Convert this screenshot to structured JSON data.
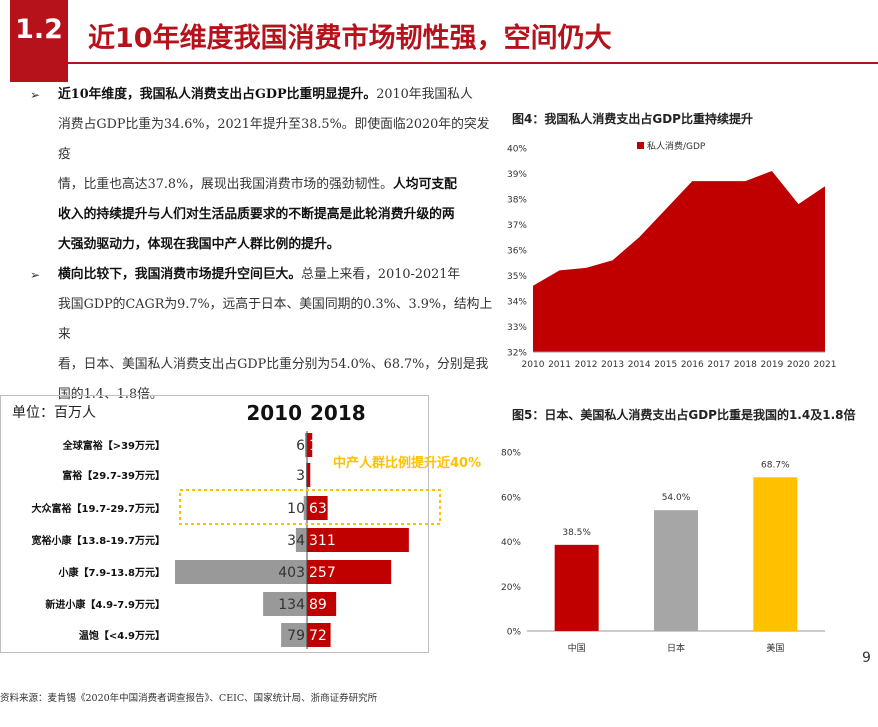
{
  "header": {
    "section_number": "1.2",
    "title": "近10年维度我国消费市场韧性强，空间仍大"
  },
  "bullets": [
    {
      "lines": [
        [
          {
            "t": "近10年维度，我国私人消费支出占GDP比重明显提升。",
            "b": true
          },
          {
            "t": "2010年我国私人",
            "b": false
          }
        ],
        [
          {
            "t": "消费占GDP比重为34.6%，2021年提升至38.5%。即使面临2020年的突发疫",
            "b": false
          }
        ],
        [
          {
            "t": "情，比重也高达37.8%，展现出我国消费市场的强劲韧性。",
            "b": false
          },
          {
            "t": "人均可支配",
            "b": true
          }
        ],
        [
          {
            "t": "收入的持续提升与人们对生活品质要求的不断提高是此轮消费升级的两",
            "b": true
          }
        ],
        [
          {
            "t": "大强劲驱动力，体现在我国中产人群比例的提升。",
            "b": true
          }
        ]
      ]
    },
    {
      "lines": [
        [
          {
            "t": "横向比较下，我国消费市场提升空间巨大。",
            "b": true
          },
          {
            "t": "总量上来看，2010-2021年",
            "b": false
          }
        ],
        [
          {
            "t": "我国GDP的CAGR为9.7%，远高于日本、美国同期的0.3%、3.9%，结构上来",
            "b": false
          }
        ],
        [
          {
            "t": "看，日本、美国私人消费支出占GDP比重分别为54.0%、68.7%，分别是我",
            "b": false
          }
        ],
        [
          {
            "t": "国的1.4、1.8倍。",
            "b": false
          }
        ]
      ]
    }
  ],
  "fig4": {
    "title": "图4：我国私人消费支出占GDP比重持续提升"
  },
  "fig5": {
    "title": "图5：日本、美国私人消费支出占GDP比重是我国的1.4及1.8倍"
  },
  "pyramid": {
    "unit_label": "单位：百万人",
    "year_left": "2010",
    "year_right": "2018",
    "annotation": "中产人群比例提升近40%"
  },
  "source": "资料来源：麦肯锡《2020年中国消费者调查报告》、CEIC、国家统计局、浙商证券研究所",
  "page_number": "9",
  "colors": {
    "red": "#c00000",
    "gray": "#999999",
    "gold": "#ffc000",
    "light_gray": "#a6a6a6",
    "dark_gray": "#808080"
  },
  "chart_data": [
    {
      "type": "area",
      "x": [
        "2010",
        "2011",
        "2012",
        "2013",
        "2014",
        "2015",
        "2016",
        "2017",
        "2018",
        "2019",
        "2020",
        "2021"
      ],
      "series": [
        {
          "name": "私人消费/GDP",
          "values": [
            34.6,
            35.2,
            35.3,
            35.6,
            36.5,
            37.6,
            38.7,
            38.7,
            38.7,
            39.1,
            37.8,
            38.5
          ]
        }
      ],
      "yticks": [
        "32%",
        "33%",
        "34%",
        "35%",
        "36%",
        "37%",
        "38%",
        "39%",
        "40%"
      ],
      "ylim": [
        32,
        40
      ],
      "grid": false,
      "legend": "top"
    },
    {
      "type": "bar",
      "categories": [
        "中国",
        "日本",
        "美国"
      ],
      "values": [
        38.5,
        54.0,
        68.7
      ],
      "labels": [
        "38.5%",
        "54.0%",
        "68.7%"
      ],
      "yticks": [
        "0%",
        "20%",
        "40%",
        "60%",
        "80%"
      ],
      "ylim": [
        0,
        80
      ],
      "grid": false
    },
    {
      "type": "bar",
      "categories": [
        "全球富裕【>39万元】",
        "富裕【29.7-39万元】",
        "大众富裕【19.7-29.7万元】",
        "宽裕小康【13.8-19.7万元】",
        "小康【7.9-13.8万元】",
        "新进小康【4.9-7.9万元】",
        "温饱【<4.9万元】"
      ],
      "series": [
        {
          "name": "2010",
          "values": [
            6,
            3,
            10,
            34,
            403,
            134,
            79
          ]
        },
        {
          "name": "2018",
          "values": [
            16,
            10,
            63,
            311,
            257,
            89,
            72
          ]
        }
      ]
    }
  ]
}
